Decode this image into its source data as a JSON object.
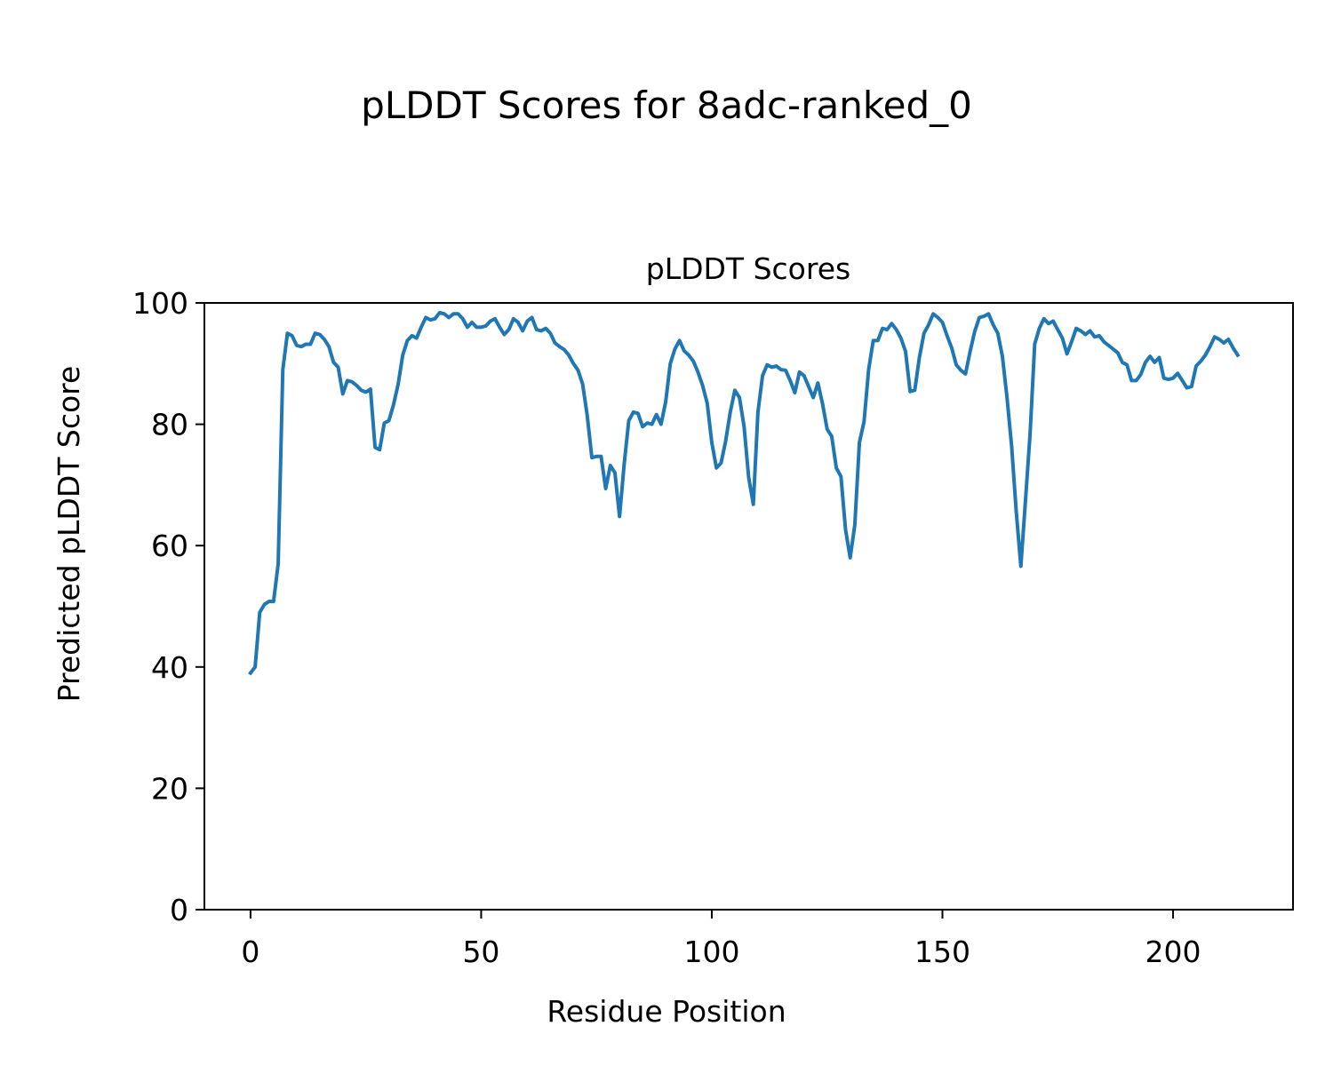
{
  "figure": {
    "suptitle": "pLDDT Scores for 8adc-ranked_0"
  },
  "chart_data": {
    "type": "line",
    "title": "pLDDT Scores",
    "xlabel": "Residue Position",
    "ylabel": "Predicted pLDDT Score",
    "xlim": [
      -10,
      226
    ],
    "ylim": [
      0,
      100
    ],
    "xticks": [
      0,
      50,
      100,
      150,
      200
    ],
    "yticks": [
      0,
      20,
      40,
      60,
      80,
      100
    ],
    "xtick_labels": [
      "0",
      "50",
      "100",
      "150",
      "200"
    ],
    "ytick_labels": [
      "0",
      "20",
      "40",
      "60",
      "80",
      "100"
    ],
    "grid": false,
    "line_color": "#1f77b4",
    "series": [
      {
        "x": [
          0,
          1,
          2,
          3,
          4,
          5,
          6,
          7,
          8,
          9,
          10,
          11,
          12,
          13,
          14,
          15,
          16,
          17,
          18,
          19,
          20,
          21,
          22,
          23,
          24,
          25,
          26,
          27,
          28,
          29,
          30,
          31,
          32,
          33,
          34,
          35,
          36,
          37,
          38,
          39,
          40,
          41,
          42,
          43,
          44,
          45,
          46,
          47,
          48,
          49,
          50,
          51,
          52,
          53,
          54,
          55,
          56,
          57,
          58,
          59,
          60,
          61,
          62,
          63,
          64,
          65,
          66,
          67,
          68,
          69,
          70,
          71,
          72,
          73,
          74,
          75,
          76,
          77,
          78,
          79,
          80,
          81,
          82,
          83,
          84,
          85,
          86,
          87,
          88,
          89,
          90,
          91,
          92,
          93,
          94,
          95,
          96,
          97,
          98,
          99,
          100,
          101,
          102,
          103,
          104,
          105,
          106,
          107,
          108,
          109,
          110,
          111,
          112,
          113,
          114,
          115,
          116,
          117,
          118,
          119,
          120,
          121,
          122,
          123,
          124,
          125,
          126,
          127,
          128,
          129,
          130,
          131,
          132,
          133,
          134,
          135,
          136,
          137,
          138,
          139,
          140,
          141,
          142,
          143,
          144,
          145,
          146,
          147,
          148,
          149,
          150,
          151,
          152,
          153,
          154,
          155,
          156,
          157,
          158,
          159,
          160,
          161,
          162,
          163,
          164,
          165,
          166,
          167,
          168,
          169,
          170,
          171,
          172,
          173,
          174,
          175,
          176,
          177,
          178,
          179,
          180,
          181,
          182,
          183,
          184,
          185,
          186,
          187,
          188,
          189,
          190,
          191,
          192,
          193,
          194,
          195,
          196,
          197,
          198,
          199,
          200,
          201,
          202,
          203,
          204,
          205,
          206,
          207,
          208,
          209,
          210,
          211,
          212,
          213,
          214
        ],
        "values": [
          39,
          40,
          49,
          50.3,
          50.8,
          50.8,
          57,
          89,
          95,
          94.6,
          93,
          92.8,
          93.2,
          93.2,
          95,
          94.8,
          94,
          92.8,
          90.2,
          89.4,
          85,
          87.2,
          87,
          86.4,
          85.6,
          85.3,
          85.8,
          76.2,
          75.8,
          80.2,
          80.6,
          83.2,
          86.6,
          91.4,
          93.8,
          94.6,
          94.2,
          96,
          97.6,
          97.2,
          97.4,
          98.4,
          98.2,
          97.6,
          98.2,
          98.2,
          97.4,
          96,
          96.8,
          96,
          96,
          96.2,
          97,
          97.4,
          96,
          94.8,
          95.6,
          97.4,
          96.8,
          95.4,
          97,
          97.6,
          95.6,
          95.4,
          95.8,
          95,
          93.4,
          92.8,
          92.3,
          91.4,
          90,
          88.9,
          86.6,
          81.4,
          74.5,
          74.7,
          74.7,
          69.4,
          73.2,
          72,
          64.8,
          73.4,
          80.6,
          82,
          81.8,
          79.6,
          80.2,
          80,
          81.6,
          80,
          83.7,
          90,
          92.4,
          93.8,
          92.1,
          91.4,
          90.4,
          88.6,
          86.4,
          83.5,
          77,
          72.8,
          73.6,
          77.2,
          82,
          85.6,
          84.4,
          79.6,
          71.2,
          66.8,
          82,
          88,
          89.8,
          89.4,
          89.6,
          89,
          88.9,
          87.2,
          85.2,
          88.6,
          88,
          86.2,
          84.4,
          86.8,
          83.4,
          79.2,
          78,
          72.8,
          71.4,
          62.6,
          58,
          63.4,
          77,
          80.4,
          89,
          93.8,
          93.8,
          95.8,
          95.6,
          96.6,
          95.6,
          94.2,
          92,
          85.4,
          85.6,
          91,
          95,
          96.4,
          98.2,
          97.6,
          96.8,
          94.6,
          92.6,
          89.8,
          88.9,
          88.3,
          92,
          95.3,
          97.6,
          97.8,
          98.2,
          96.4,
          95,
          91.2,
          84.4,
          76.4,
          65.6,
          56.6,
          67.4,
          78.4,
          93.2,
          95.8,
          97.4,
          96.6,
          97,
          95.6,
          94.2,
          91.6,
          93.6,
          95.8,
          95.4,
          94.8,
          95.4,
          94.4,
          94.6,
          93.6,
          93,
          92.4,
          91.8,
          90.2,
          89.8,
          87.2,
          87.2,
          88.2,
          90.2,
          91.2,
          90.2,
          91,
          87.6,
          87.4,
          87.6,
          88.4,
          87.2,
          86,
          86.2,
          89.6,
          90.4,
          91.4,
          92.8,
          94.4,
          94,
          93.4,
          94,
          92.6,
          91.4
        ]
      }
    ]
  }
}
